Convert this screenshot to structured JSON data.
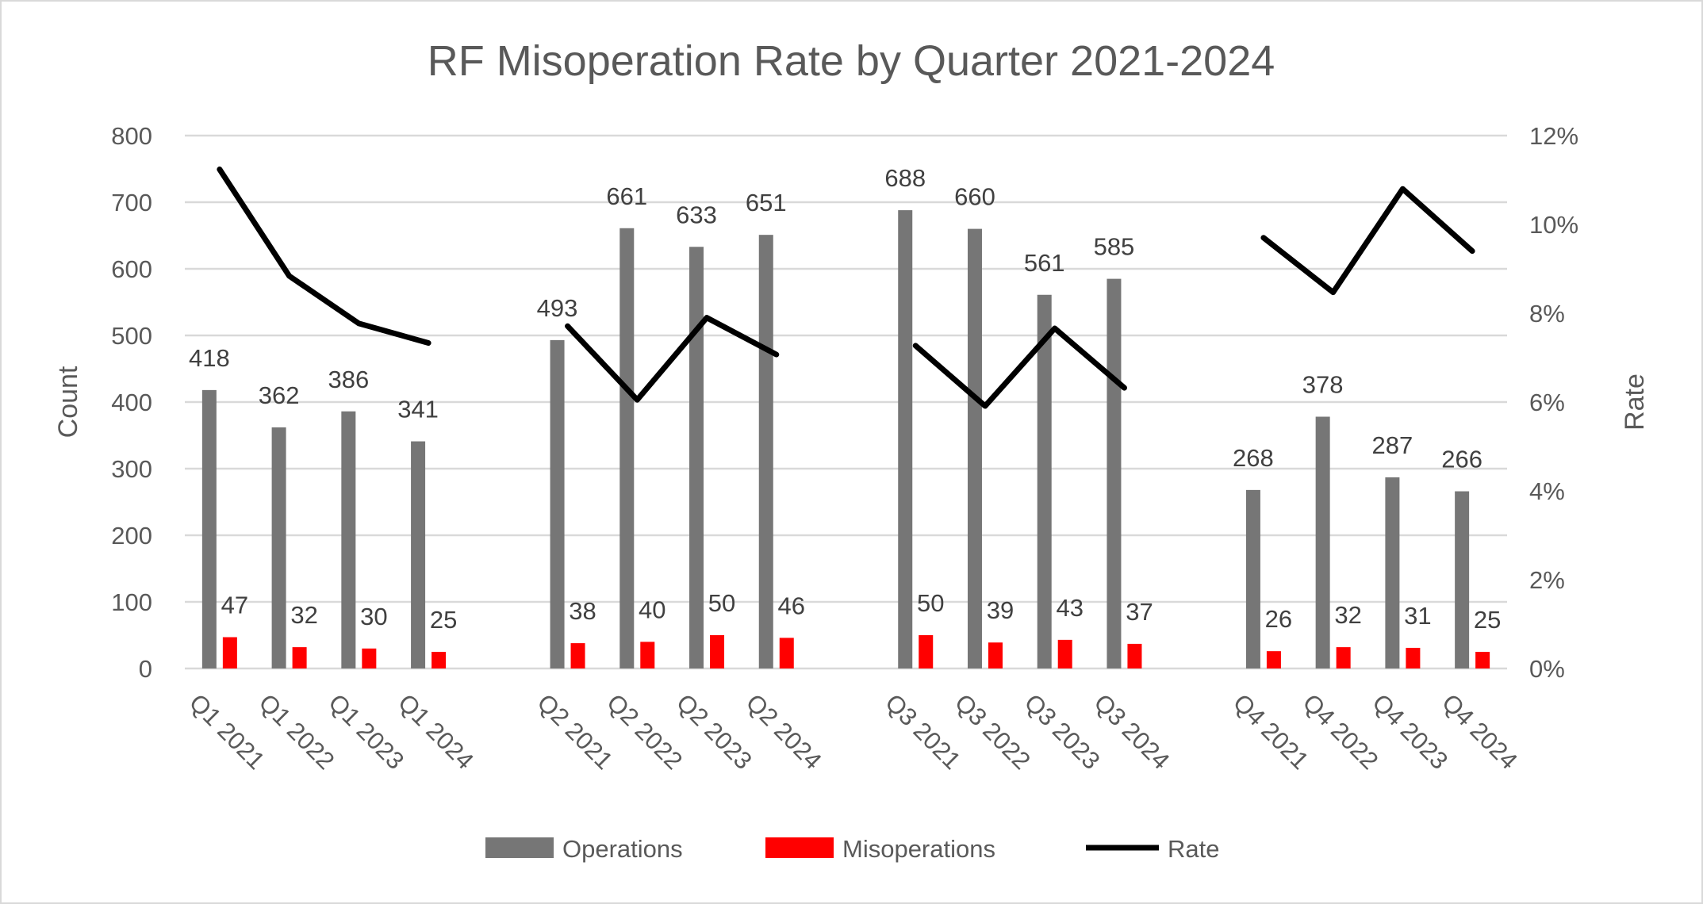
{
  "chart_data": {
    "type": "bar+line",
    "title": "RF Misoperation Rate by Quarter 2021-2024",
    "ylabel": "Count",
    "y2label": "Rate",
    "ylim": [
      0,
      800
    ],
    "y2lim": [
      0,
      0.12
    ],
    "yticks": [
      "0",
      "100",
      "200",
      "300",
      "400",
      "500",
      "600",
      "700",
      "800"
    ],
    "y2ticks": [
      "0%",
      "2%",
      "4%",
      "6%",
      "8%",
      "10%",
      "12%"
    ],
    "grid": true,
    "legend_position": "bottom",
    "categories": [
      "Q1 2021",
      "Q1 2022",
      "Q1 2023",
      "Q1 2024",
      "",
      "Q2 2021",
      "Q2 2022",
      "Q2 2023",
      "Q2 2024",
      "",
      "Q3 2021",
      "Q3 2022",
      "Q3 2023",
      "Q3 2024",
      "",
      "Q4 2021",
      "Q4 2022",
      "Q4 2023",
      "Q4 2024"
    ],
    "series": [
      {
        "name": "Operations",
        "type": "bar",
        "color": "#767676",
        "axis": "left",
        "values": [
          418,
          362,
          386,
          341,
          null,
          493,
          661,
          633,
          651,
          null,
          688,
          660,
          561,
          585,
          null,
          268,
          378,
          287,
          266
        ]
      },
      {
        "name": "Misoperations",
        "type": "bar",
        "color": "#ff0000",
        "axis": "left",
        "values": [
          47,
          32,
          30,
          25,
          null,
          38,
          40,
          50,
          46,
          null,
          50,
          39,
          43,
          37,
          null,
          26,
          32,
          31,
          25
        ]
      },
      {
        "name": "Rate",
        "type": "line",
        "color": "#000000",
        "axis": "right",
        "values": [
          0.1124,
          0.0884,
          0.0777,
          0.0733,
          null,
          0.0771,
          0.0605,
          0.079,
          0.0707,
          null,
          0.0727,
          0.0591,
          0.0766,
          0.0632,
          null,
          0.097,
          0.0847,
          0.108,
          0.094
        ]
      }
    ]
  }
}
